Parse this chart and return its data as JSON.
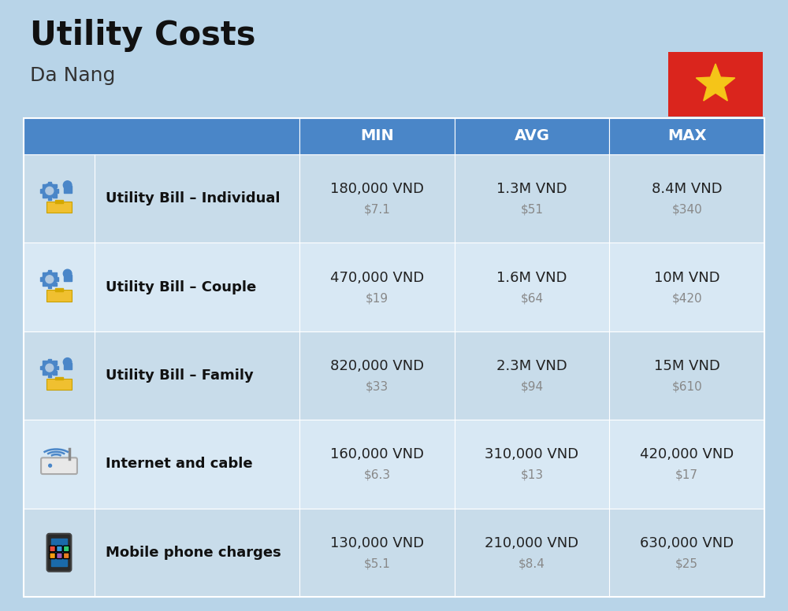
{
  "title": "Utility Costs",
  "subtitle": "Da Nang",
  "bg_color": "#b8d4e8",
  "header_bg": "#4a86c8",
  "header_text_color": "#ffffff",
  "row_bg_even": "#c8dcea",
  "row_bg_odd": "#d8e8f4",
  "col_headers": [
    "MIN",
    "AVG",
    "MAX"
  ],
  "rows": [
    {
      "label": "Utility Bill – Individual",
      "min_vnd": "180,000 VND",
      "min_usd": "$7.1",
      "avg_vnd": "1.3M VND",
      "avg_usd": "$51",
      "max_vnd": "8.4M VND",
      "max_usd": "$340"
    },
    {
      "label": "Utility Bill – Couple",
      "min_vnd": "470,000 VND",
      "min_usd": "$19",
      "avg_vnd": "1.6M VND",
      "avg_usd": "$64",
      "max_vnd": "10M VND",
      "max_usd": "$420"
    },
    {
      "label": "Utility Bill – Family",
      "min_vnd": "820,000 VND",
      "min_usd": "$33",
      "avg_vnd": "2.3M VND",
      "avg_usd": "$94",
      "max_vnd": "15M VND",
      "max_usd": "$610"
    },
    {
      "label": "Internet and cable",
      "min_vnd": "160,000 VND",
      "min_usd": "$6.3",
      "avg_vnd": "310,000 VND",
      "avg_usd": "$13",
      "max_vnd": "420,000 VND",
      "max_usd": "$17"
    },
    {
      "label": "Mobile phone charges",
      "min_vnd": "130,000 VND",
      "min_usd": "$5.1",
      "avg_vnd": "210,000 VND",
      "avg_usd": "$8.4",
      "max_vnd": "630,000 VND",
      "max_usd": "$25"
    }
  ],
  "vnd_color": "#222222",
  "usd_color": "#888888",
  "label_color": "#111111",
  "flag_red": "#da251d",
  "flag_yellow": "#f5c518",
  "title_fontsize": 30,
  "subtitle_fontsize": 18,
  "header_fontsize": 14,
  "label_fontsize": 13,
  "vnd_fontsize": 13,
  "usd_fontsize": 11
}
